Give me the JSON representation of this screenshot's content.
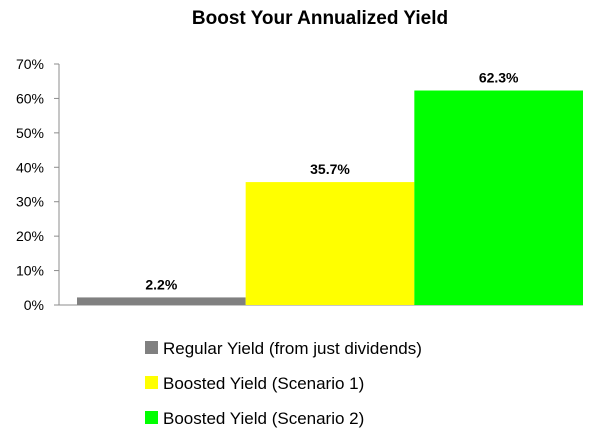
{
  "chart_data": {
    "type": "bar",
    "title": "Boost Your Annualized Yield",
    "xlabel": "",
    "ylabel": "",
    "ylim": [
      0,
      70
    ],
    "y_ticks": [
      0,
      10,
      20,
      30,
      40,
      50,
      60,
      70
    ],
    "y_tick_labels": [
      "0%",
      "10%",
      "20%",
      "30%",
      "40%",
      "50%",
      "60%",
      "70%"
    ],
    "grid": false,
    "legend_position": "bottom",
    "series": [
      {
        "name": "Regular Yield (from just dividends)",
        "value": 2.2,
        "data_label": "2.2%",
        "color": "#808080"
      },
      {
        "name": "Boosted Yield (Scenario 1)",
        "value": 35.7,
        "data_label": "35.7%",
        "color": "#ffff00"
      },
      {
        "name": "Boosted Yield (Scenario 2)",
        "value": 62.3,
        "data_label": "62.3%",
        "color": "#00ff00"
      }
    ]
  }
}
